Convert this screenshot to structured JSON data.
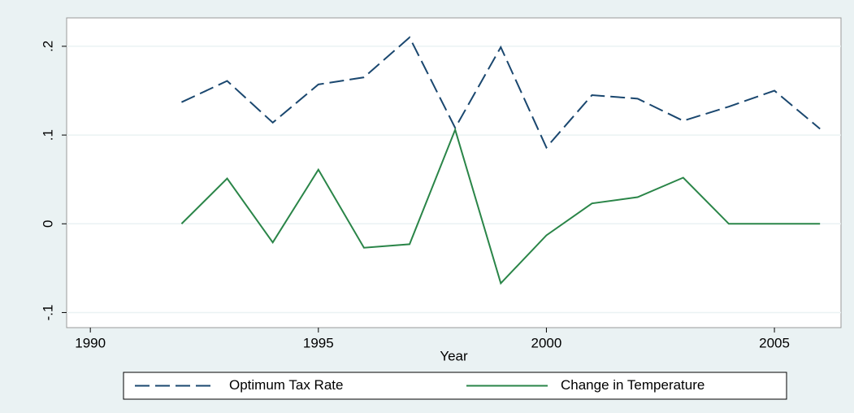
{
  "chart_data": {
    "type": "line",
    "x_label": "Year",
    "x": [
      1992,
      1993,
      1994,
      1995,
      1996,
      1997,
      1998,
      1999,
      2000,
      2001,
      2002,
      2003,
      2004,
      2005,
      2006
    ],
    "series": [
      {
        "name": "Optimum Tax Rate",
        "color": "#1a476f",
        "line_style": "dash",
        "values": [
          0.137,
          0.161,
          0.114,
          0.157,
          0.165,
          0.21,
          0.108,
          0.199,
          0.086,
          0.145,
          0.141,
          0.116,
          0.132,
          0.15,
          0.107
        ]
      },
      {
        "name": "Change in Temperature",
        "color": "#2a8548",
        "line_style": "solid",
        "values": [
          0,
          0.051,
          -0.021,
          0.061,
          -0.027,
          -0.023,
          0.106,
          -0.067,
          -0.013,
          0.023,
          0.03,
          0.052,
          0,
          0,
          0
        ]
      }
    ],
    "xlim": [
      1989.48,
      2006.46
    ],
    "xticks": [
      1990,
      1995,
      2000,
      2005
    ],
    "ylim": [
      -0.117,
      0.232
    ],
    "yticks": [
      {
        "value": -0.1,
        "label": "-.1"
      },
      0,
      {
        "value": 0.1,
        "label": ".1"
      },
      {
        "value": 0.2,
        "label": ".2"
      }
    ],
    "grid": true,
    "legend": "bottom"
  }
}
